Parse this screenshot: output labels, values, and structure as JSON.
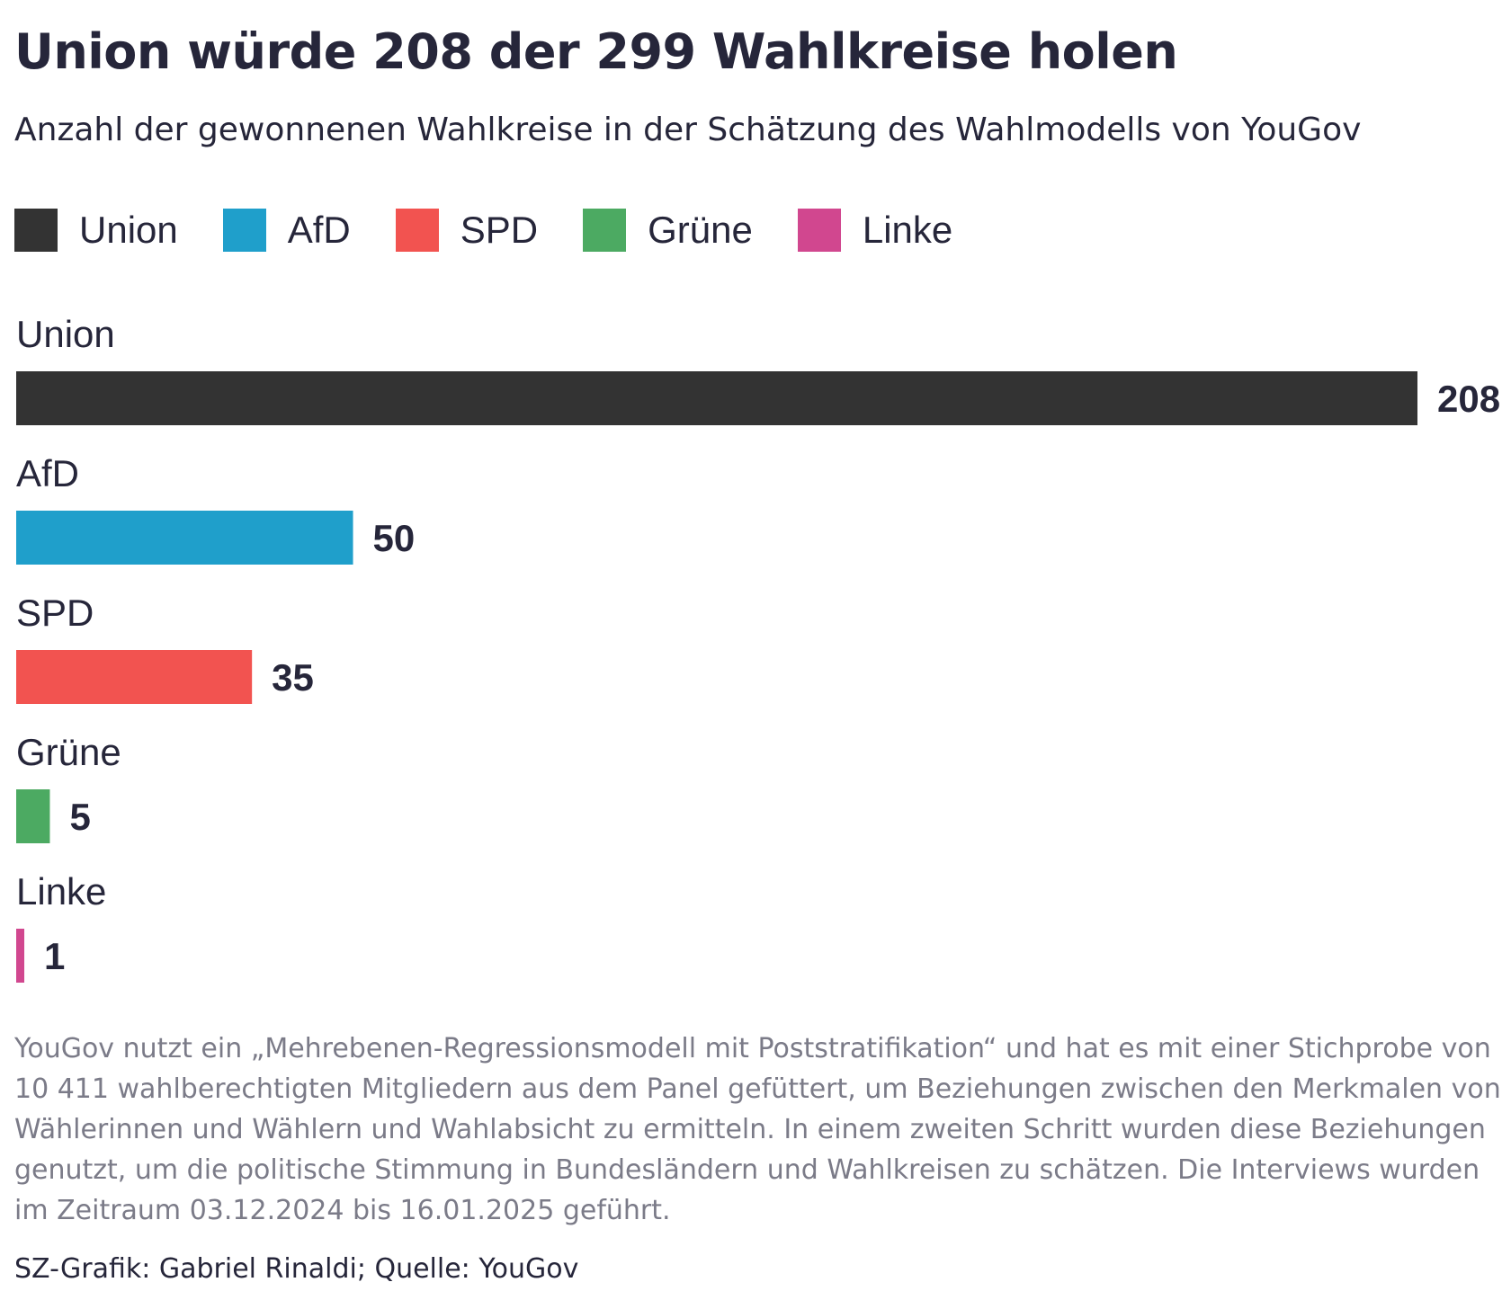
{
  "chart_data": {
    "type": "bar",
    "orientation": "horizontal",
    "title": "Union würde 208 der 299 Wahlkreise holen",
    "subtitle": "Anzahl der gewonnenen Wahlkreise in der Schätzung des Wahlmodells von YouGov",
    "categories": [
      "Union",
      "AfD",
      "SPD",
      "Grüne",
      "Linke"
    ],
    "values": [
      208,
      50,
      35,
      5,
      1
    ],
    "colors": [
      "#333333",
      "#1f9fcb",
      "#f25350",
      "#4caa62",
      "#d1478f"
    ],
    "legend": {
      "placement": "top-left",
      "entries": [
        "Union",
        "AfD",
        "SPD",
        "Grüne",
        "Linke"
      ]
    },
    "xlim": [
      0,
      208
    ],
    "grid": false,
    "note": "YouGov nutzt ein „Mehrebenen-Regressionsmodell mit Poststratifikation“ und hat es mit einer Stichprobe von 10 411 wahlberechtigten Mitgliedern aus dem Panel gefüttert, um Beziehungen zwischen den Merkmalen von Wählerinnen und Wählern und Wahlabsicht zu ermitteln. In einem zweiten Schritt wurden diese Beziehungen genutzt, um die politische Stimmung in Bundesländern und Wahlkreisen zu schätzen. Die Interviews wurden im Zeitraum 03.12.2024 bis 16.01.2025 geführt.",
    "source": "SZ-Grafik: Gabriel Rinaldi; Quelle: YouGov"
  }
}
